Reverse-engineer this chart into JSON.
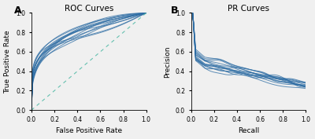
{
  "roc_title": "ROC Curves",
  "pr_title": "PR Curves",
  "roc_xlabel": "False Positive Rate",
  "roc_ylabel": "True Positive Rate",
  "pr_xlabel": "Recall",
  "pr_ylabel": "Precision",
  "panel_a_label": "A",
  "panel_b_label": "B",
  "n_curves": 14,
  "roc_color": "#2e6da4",
  "diagonal_color": "#4db8a4",
  "pr_color": "#2e6da4",
  "line_alpha": 0.75,
  "line_width": 0.7,
  "diagonal_linewidth": 0.8,
  "xlim": [
    0.0,
    1.0
  ],
  "ylim": [
    0.0,
    1.0
  ],
  "figsize": [
    4.0,
    1.77
  ],
  "dpi": 100
}
